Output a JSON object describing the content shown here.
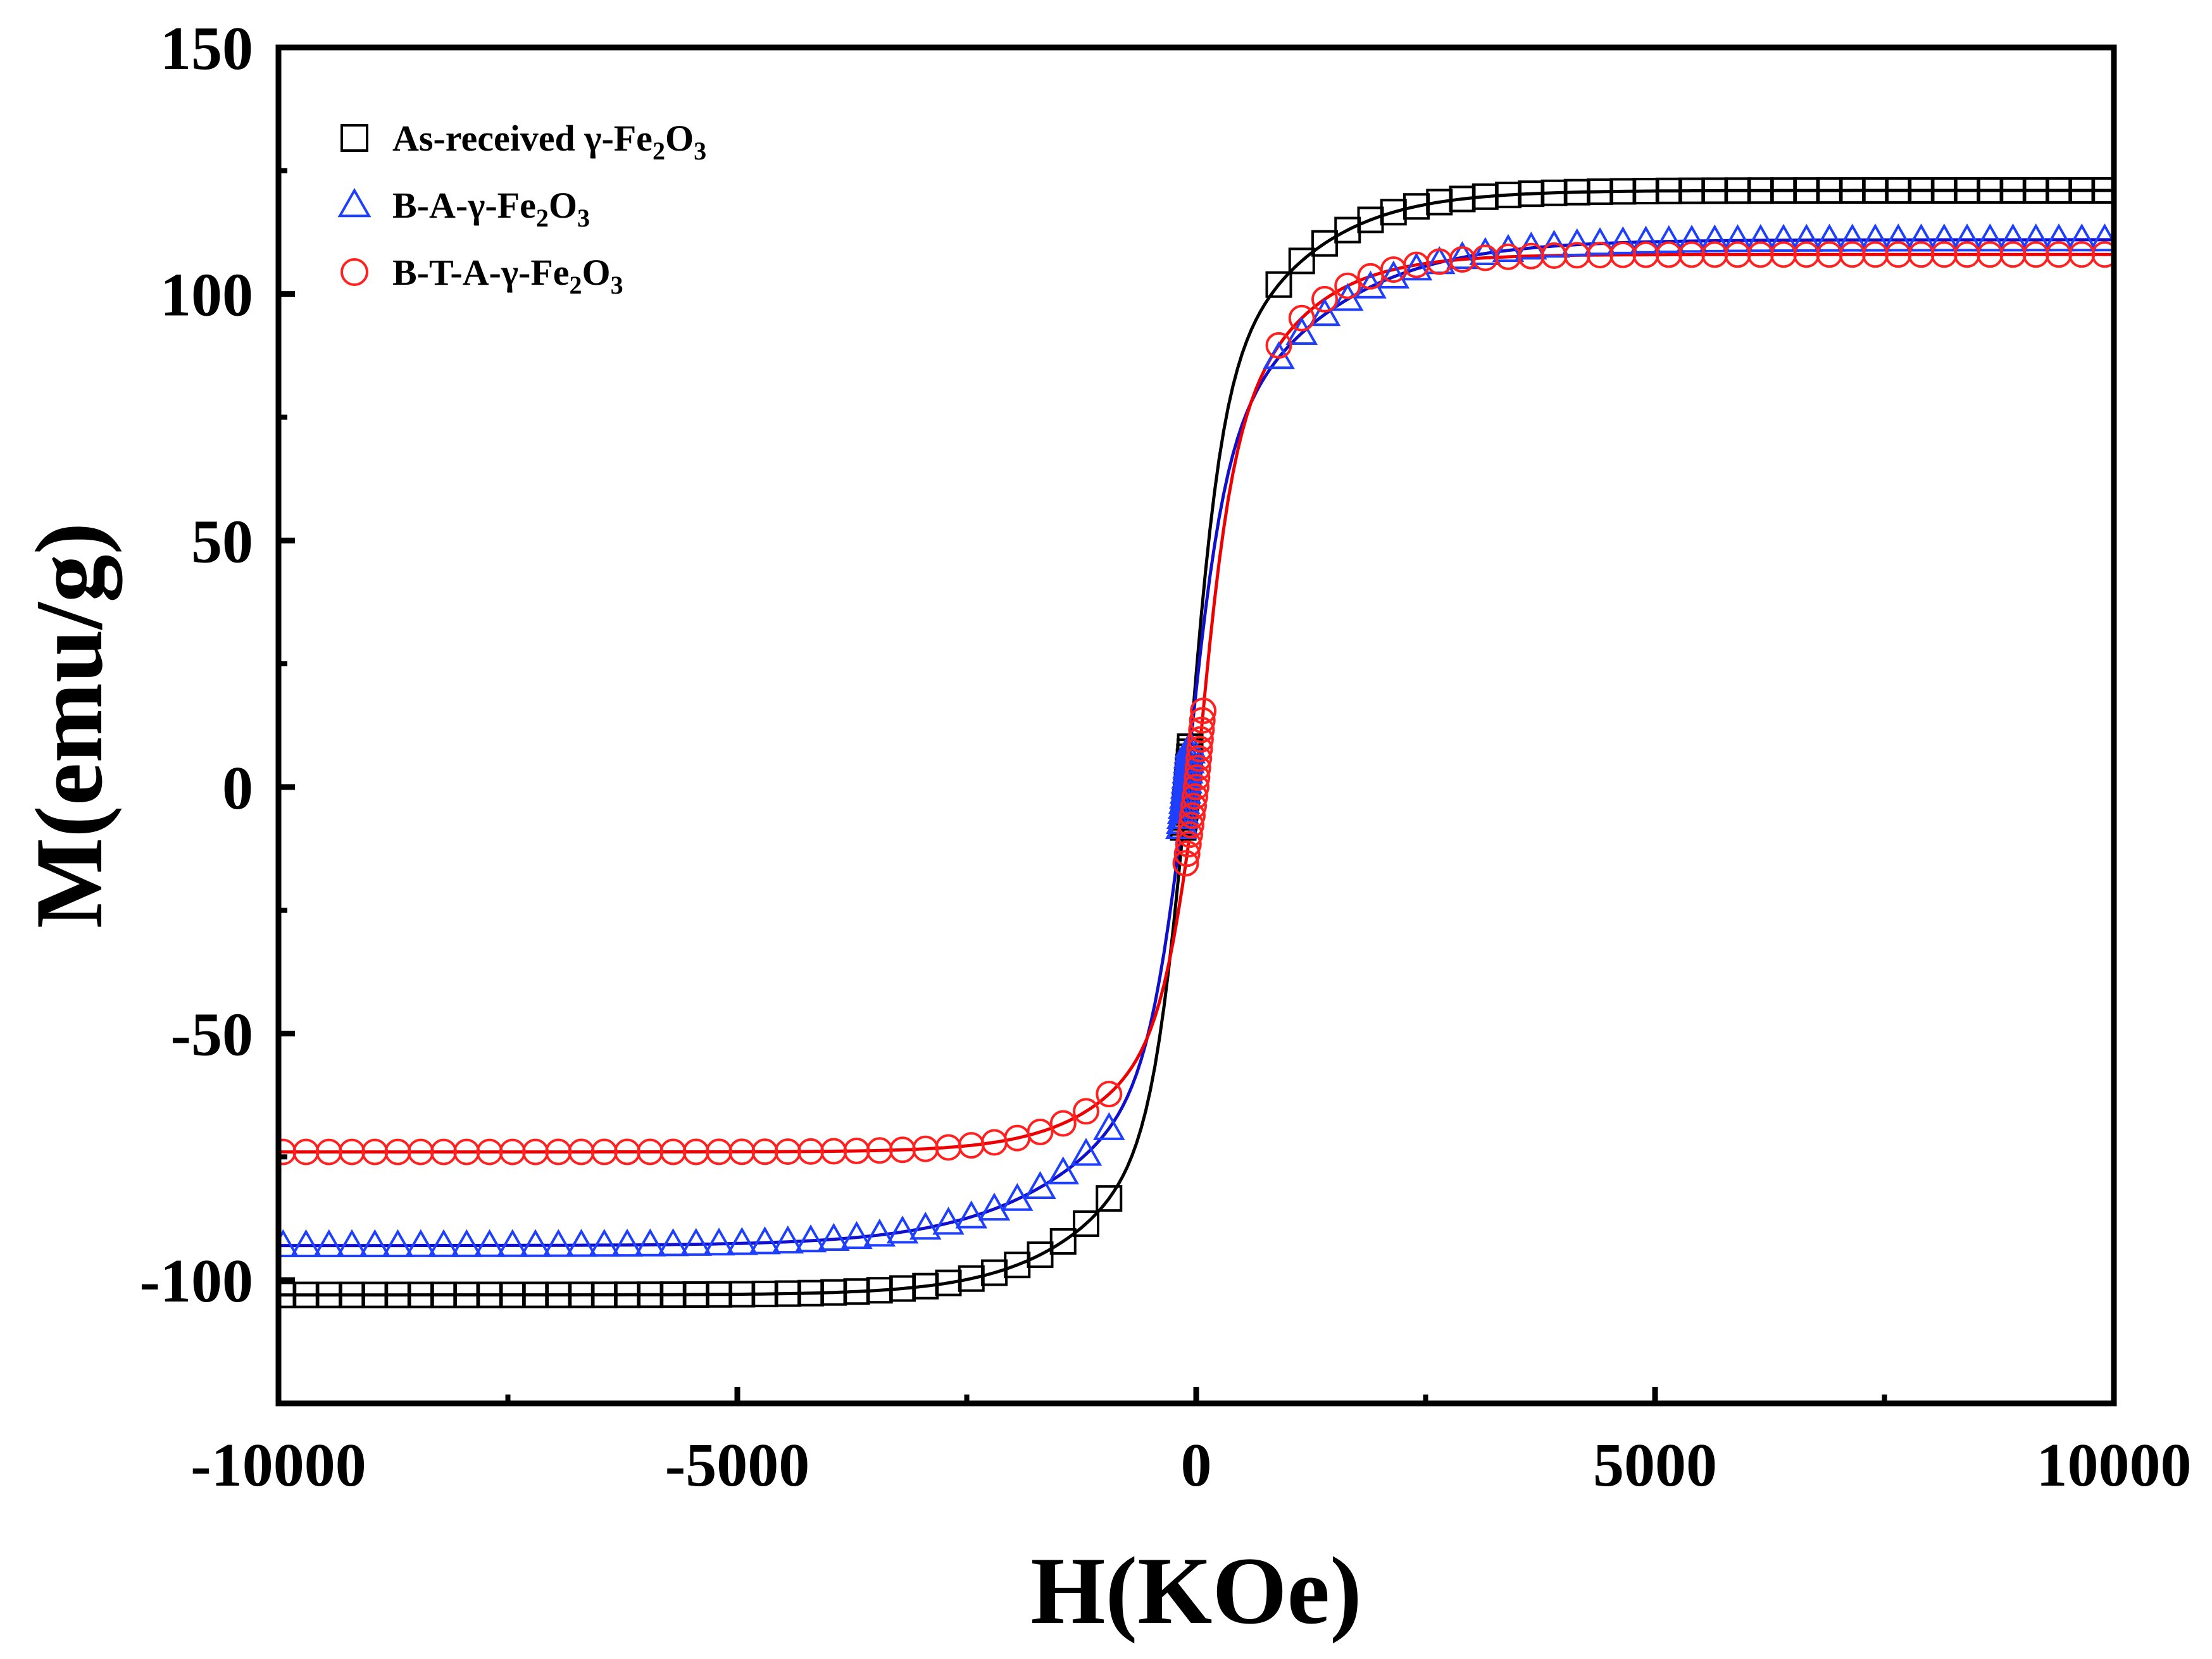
{
  "chart_data": {
    "type": "line",
    "title": "",
    "xlabel": "H(KOe)",
    "ylabel": "M(emu/g)",
    "xlim": [
      -10000,
      10000
    ],
    "ylim": [
      -125,
      150
    ],
    "xticks": [
      -10000,
      -5000,
      0,
      5000,
      10000
    ],
    "xtick_labels": [
      "-10000",
      "-5000",
      "0",
      "5000",
      "10000"
    ],
    "yticks": [
      -100,
      -50,
      0,
      50,
      100,
      150
    ],
    "ytick_labels": [
      "-100",
      "-50",
      "0",
      "50",
      "100",
      "150"
    ],
    "grid": false,
    "legend_position": "top-left",
    "series": [
      {
        "name": "As-received γ-Fe2O3",
        "legend_main": "As-received γ-Fe",
        "legend_sub1": "2",
        "legend_mid": "O",
        "legend_sub2": "3",
        "marker": "square",
        "marker_color": "#000000",
        "line_color": "#000000",
        "Ms_pos": 121,
        "Ms_neg": -103,
        "H0": -100,
        "a": 380,
        "b": 1550,
        "f": 0.65
      },
      {
        "name": "B-A-γ-Fe2O3",
        "legend_main": "B-A-γ-Fe",
        "legend_sub1": "2",
        "legend_mid": "O",
        "legend_sub2": "3",
        "marker": "triangle",
        "marker_color": "#1f3fff",
        "line_color": "#1010cc",
        "Ms_pos": 111,
        "Ms_neg": -93,
        "H0": -110,
        "a": 420,
        "b": 1900,
        "f": 0.6
      },
      {
        "name": "B-T-A-γ-Fe2O3",
        "legend_main": "B-T-A-γ-Fe",
        "legend_sub1": "2",
        "legend_mid": "O",
        "legend_sub2": "3",
        "marker": "circle",
        "marker_color": "#ff2020",
        "line_color": "#ee0000",
        "Ms_pos": 108,
        "Ms_neg": -74,
        "H0": 0,
        "a": 380,
        "b": 1300,
        "f": 0.6
      }
    ]
  }
}
